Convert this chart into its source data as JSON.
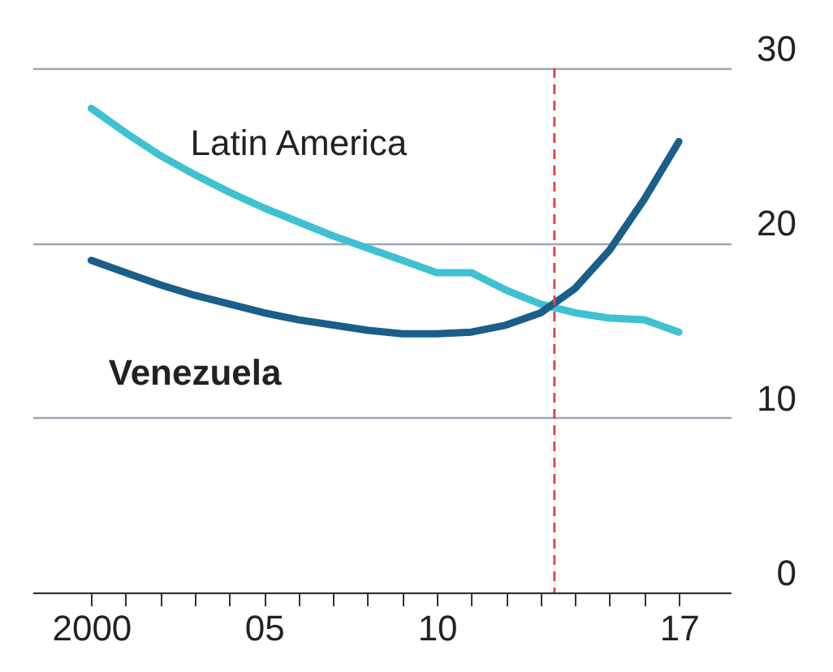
{
  "chart_data": {
    "type": "line",
    "x": [
      2000,
      2001,
      2002,
      2003,
      2004,
      2005,
      2006,
      2007,
      2008,
      2009,
      2010,
      2011,
      2012,
      2013,
      2014,
      2015,
      2016,
      2017
    ],
    "series": [
      {
        "name": "Latin America",
        "color": "#3ec1d3",
        "values": [
          27.7,
          26.3,
          25.0,
          23.9,
          22.9,
          22.0,
          21.2,
          20.4,
          19.7,
          19.0,
          18.3,
          18.3,
          17.3,
          16.5,
          16.0,
          15.7,
          15.6,
          14.9
        ]
      },
      {
        "name": "Venezuela",
        "color": "#1a5e8a",
        "values": [
          19.0,
          18.3,
          17.6,
          17.0,
          16.5,
          16.0,
          15.6,
          15.3,
          15.0,
          14.8,
          14.8,
          14.9,
          15.3,
          16.0,
          17.4,
          19.6,
          22.5,
          25.8
        ]
      }
    ],
    "xlim": [
      1998.3,
      2018.5
    ],
    "xticks": [
      2000,
      {
        "value": 2001,
        "label": null
      },
      {
        "value": 2002,
        "label": null
      },
      {
        "value": 2003,
        "label": null
      },
      {
        "value": 2004,
        "label": null
      },
      {
        "value": 2005,
        "label": "05"
      },
      {
        "value": 2006,
        "label": null
      },
      {
        "value": 2007,
        "label": null
      },
      {
        "value": 2008,
        "label": null
      },
      {
        "value": 2009,
        "label": null
      },
      {
        "value": 2010,
        "label": "10"
      },
      {
        "value": 2011,
        "label": null
      },
      {
        "value": 2012,
        "label": null
      },
      {
        "value": 2013,
        "label": null
      },
      {
        "value": 2014,
        "label": null
      },
      {
        "value": 2015,
        "label": null
      },
      {
        "value": 2016,
        "label": null
      },
      {
        "value": 2017,
        "label": "17"
      }
    ],
    "ylim": [
      0,
      30
    ],
    "yticks": [
      0,
      10,
      20,
      30
    ],
    "grid": "y",
    "ref_lines": [
      {
        "axis": "x",
        "value": 2013.4,
        "color": "#e0474c",
        "line_style": "dashed"
      }
    ]
  }
}
